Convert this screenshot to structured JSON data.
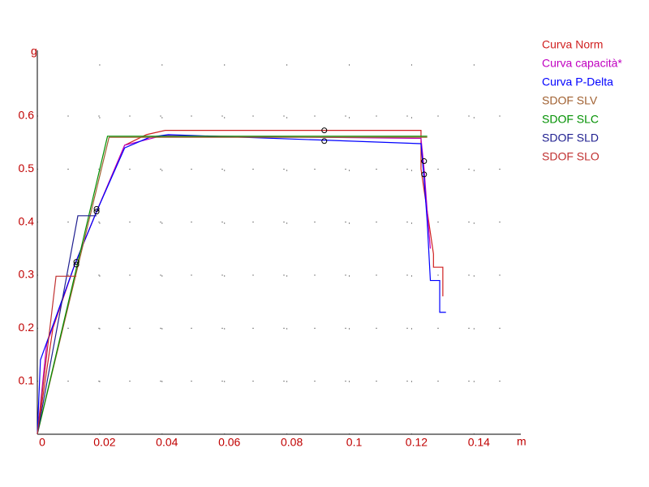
{
  "chart_data": {
    "type": "line",
    "x_label": "m",
    "y_label": "g",
    "xlim": [
      0,
      0.155
    ],
    "ylim": [
      0,
      0.724
    ],
    "xticks": [
      0,
      0.02,
      0.04,
      0.06,
      0.08,
      0.1,
      0.12,
      0.14
    ],
    "yticks": [
      0.1,
      0.2,
      0.3,
      0.4,
      0.5,
      0.6
    ],
    "grid": true,
    "legend": "right",
    "series": [
      {
        "name": "Curva Norm",
        "color": "#d02020",
        "x": [
          0,
          0.005,
          0.012,
          0.019,
          0.028,
          0.035,
          0.041,
          0.123,
          0.123,
          0.125,
          0.126,
          0.127,
          0.127,
          0.13,
          0.13
        ],
        "values": [
          0,
          0.2,
          0.32,
          0.42,
          0.545,
          0.565,
          0.573,
          0.573,
          0.5,
          0.42,
          0.38,
          0.34,
          0.315,
          0.315,
          0.26
        ]
      },
      {
        "name": "Curva capacità*",
        "color": "#c000c0",
        "x": [
          0,
          0.003,
          0.012,
          0.019,
          0.028,
          0.04,
          0.123,
          0.124,
          0.125,
          0.126
        ],
        "values": [
          0,
          0.17,
          0.32,
          0.42,
          0.545,
          0.563,
          0.558,
          0.5,
          0.42,
          0.35
        ]
      },
      {
        "name": "Curva P-Delta",
        "color": "#0000ff",
        "x": [
          0,
          0.001,
          0.012,
          0.019,
          0.028,
          0.036,
          0.042,
          0.09,
          0.123,
          0.124,
          0.125,
          0.126,
          0.129,
          0.129,
          0.131
        ],
        "values": [
          0,
          0.14,
          0.32,
          0.42,
          0.54,
          0.56,
          0.565,
          0.555,
          0.548,
          0.48,
          0.4,
          0.29,
          0.29,
          0.23,
          0.23
        ]
      },
      {
        "name": "SDOF SLV",
        "color": "#a06030",
        "x": [
          0,
          0.023,
          0.125
        ],
        "values": [
          0,
          0.56,
          0.56
        ]
      },
      {
        "name": "SDOF SLC",
        "color": "#009000",
        "x": [
          0,
          0.0225,
          0.125
        ],
        "values": [
          0,
          0.562,
          0.562
        ]
      },
      {
        "name": "SDOF SLD",
        "color": "#202090",
        "x": [
          0,
          0.013,
          0.019
        ],
        "values": [
          0,
          0.412,
          0.412
        ]
      },
      {
        "name": "SDOF SLO",
        "color": "#c03030",
        "x": [
          0,
          0.006,
          0.0125
        ],
        "values": [
          0,
          0.298,
          0.298
        ]
      }
    ],
    "points": {
      "color": "#000000",
      "x": [
        0.0125,
        0.0125,
        0.019,
        0.019,
        0.092,
        0.092,
        0.124,
        0.124
      ],
      "values": [
        0.325,
        0.32,
        0.42,
        0.425,
        0.573,
        0.553,
        0.515,
        0.49
      ]
    }
  }
}
